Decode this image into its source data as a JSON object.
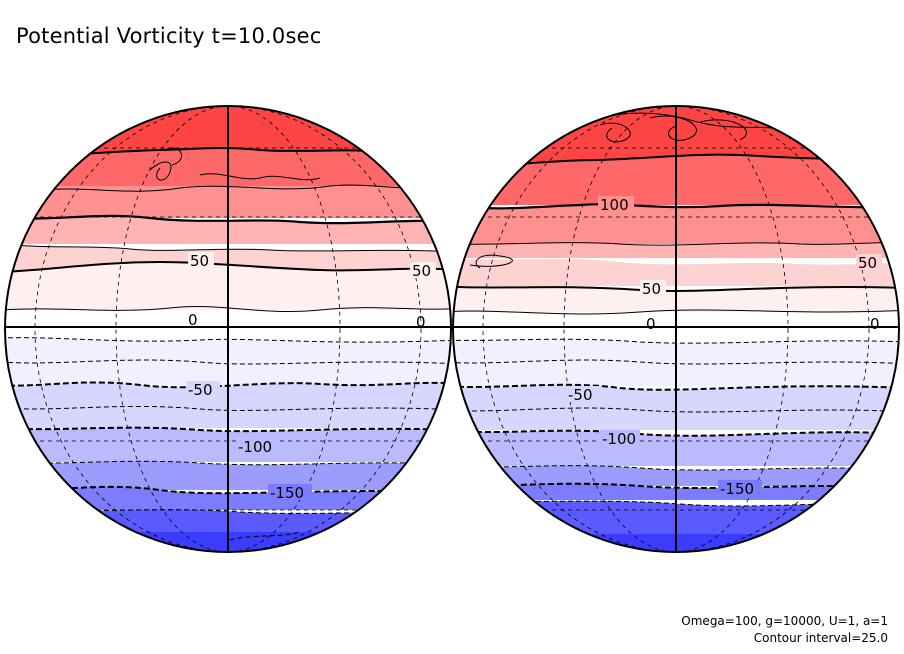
{
  "title": "Potential Vorticity t=10.0sec",
  "footer": {
    "params": "Omega=100, g=10000, U=1, a=1",
    "interval": "Contour interval=25.0"
  },
  "globes": {
    "left": {
      "labels": {
        "p50": "50",
        "p50b": "50",
        "zero": "0",
        "zerob": "0",
        "n50": "-50",
        "n100": "-100",
        "n150": "-150"
      }
    },
    "right": {
      "labels": {
        "p100": "100",
        "p50": "50",
        "p50b": "50",
        "zero": "0",
        "zerob": "0",
        "n50": "-50",
        "n100": "-100",
        "n150": "-150"
      }
    }
  },
  "colors": {
    "r1": "#ff4444",
    "r2": "#ff6868",
    "r3": "#ff9090",
    "r4": "#ffb4b4",
    "r5": "#ffd2d2",
    "r6": "#fff0f0",
    "w": "#ffffff",
    "b1": "#f0f0ff",
    "b2": "#d6d6ff",
    "b3": "#babaff",
    "b4": "#9c9cff",
    "b5": "#7c7cff",
    "b6": "#5a5aff",
    "b7": "#3c3cff"
  }
}
